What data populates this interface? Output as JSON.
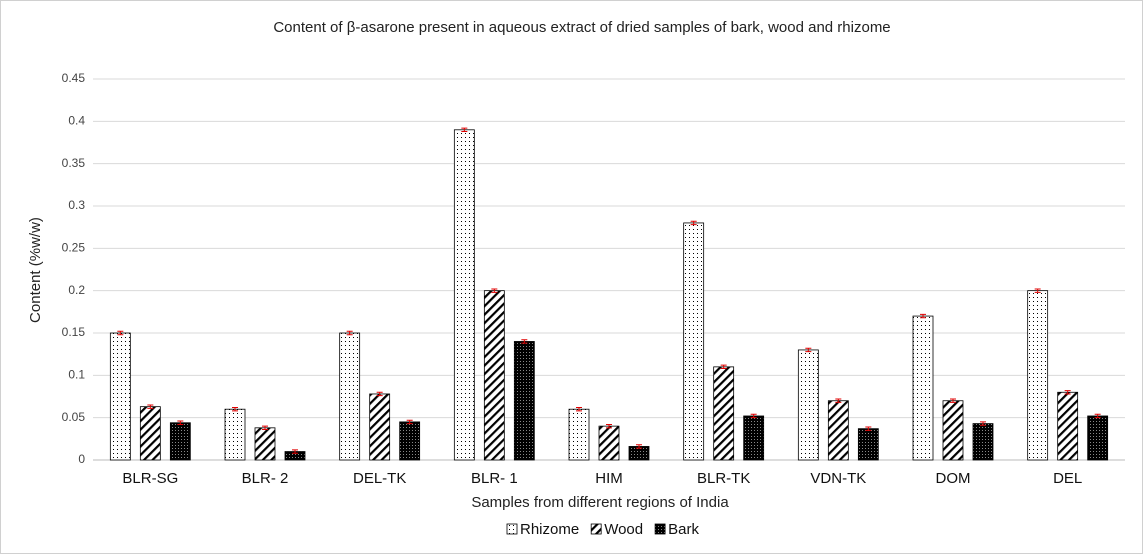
{
  "chart_data": {
    "type": "bar",
    "title": "Content of β-asarone present in aqueous extract of dried samples of bark, wood and rhizome",
    "xlabel": "Samples from different regions of India",
    "ylabel": "Content (%w/w)",
    "categories": [
      "BLR-SG",
      "BLR- 2",
      "DEL-TK",
      "BLR- 1",
      "HIM",
      "BLR-TK",
      "VDN-TK",
      "DOM",
      "DEL"
    ],
    "series": [
      {
        "name": "Rhizome",
        "color": "#000000",
        "pattern": "dots",
        "values": [
          0.15,
          0.06,
          0.15,
          0.39,
          0.06,
          0.28,
          0.13,
          0.17,
          0.2
        ],
        "errors": [
          0.002,
          0.002,
          0.002,
          0.002,
          0.002,
          0.002,
          0.002,
          0.002,
          0.002
        ]
      },
      {
        "name": "Wood",
        "color": "#000000",
        "pattern": "hatch",
        "values": [
          0.063,
          0.038,
          0.078,
          0.2,
          0.04,
          0.11,
          0.07,
          0.07,
          0.08
        ],
        "errors": [
          0.002,
          0.002,
          0.002,
          0.002,
          0.002,
          0.002,
          0.002,
          0.002,
          0.002
        ]
      },
      {
        "name": "Bark",
        "color": "#000000",
        "pattern": "solid-dots",
        "values": [
          0.044,
          0.01,
          0.045,
          0.14,
          0.016,
          0.052,
          0.037,
          0.043,
          0.052
        ],
        "errors": [
          0.002,
          0.002,
          0.002,
          0.002,
          0.002,
          0.002,
          0.002,
          0.002,
          0.002
        ]
      }
    ],
    "error_color": "#e00000",
    "ylim": [
      0,
      0.45
    ],
    "yticks": [
      0,
      0.05,
      0.1,
      0.15,
      0.2,
      0.25,
      0.3,
      0.35,
      0.4,
      0.45
    ],
    "grid": true,
    "legend": "bottom"
  }
}
